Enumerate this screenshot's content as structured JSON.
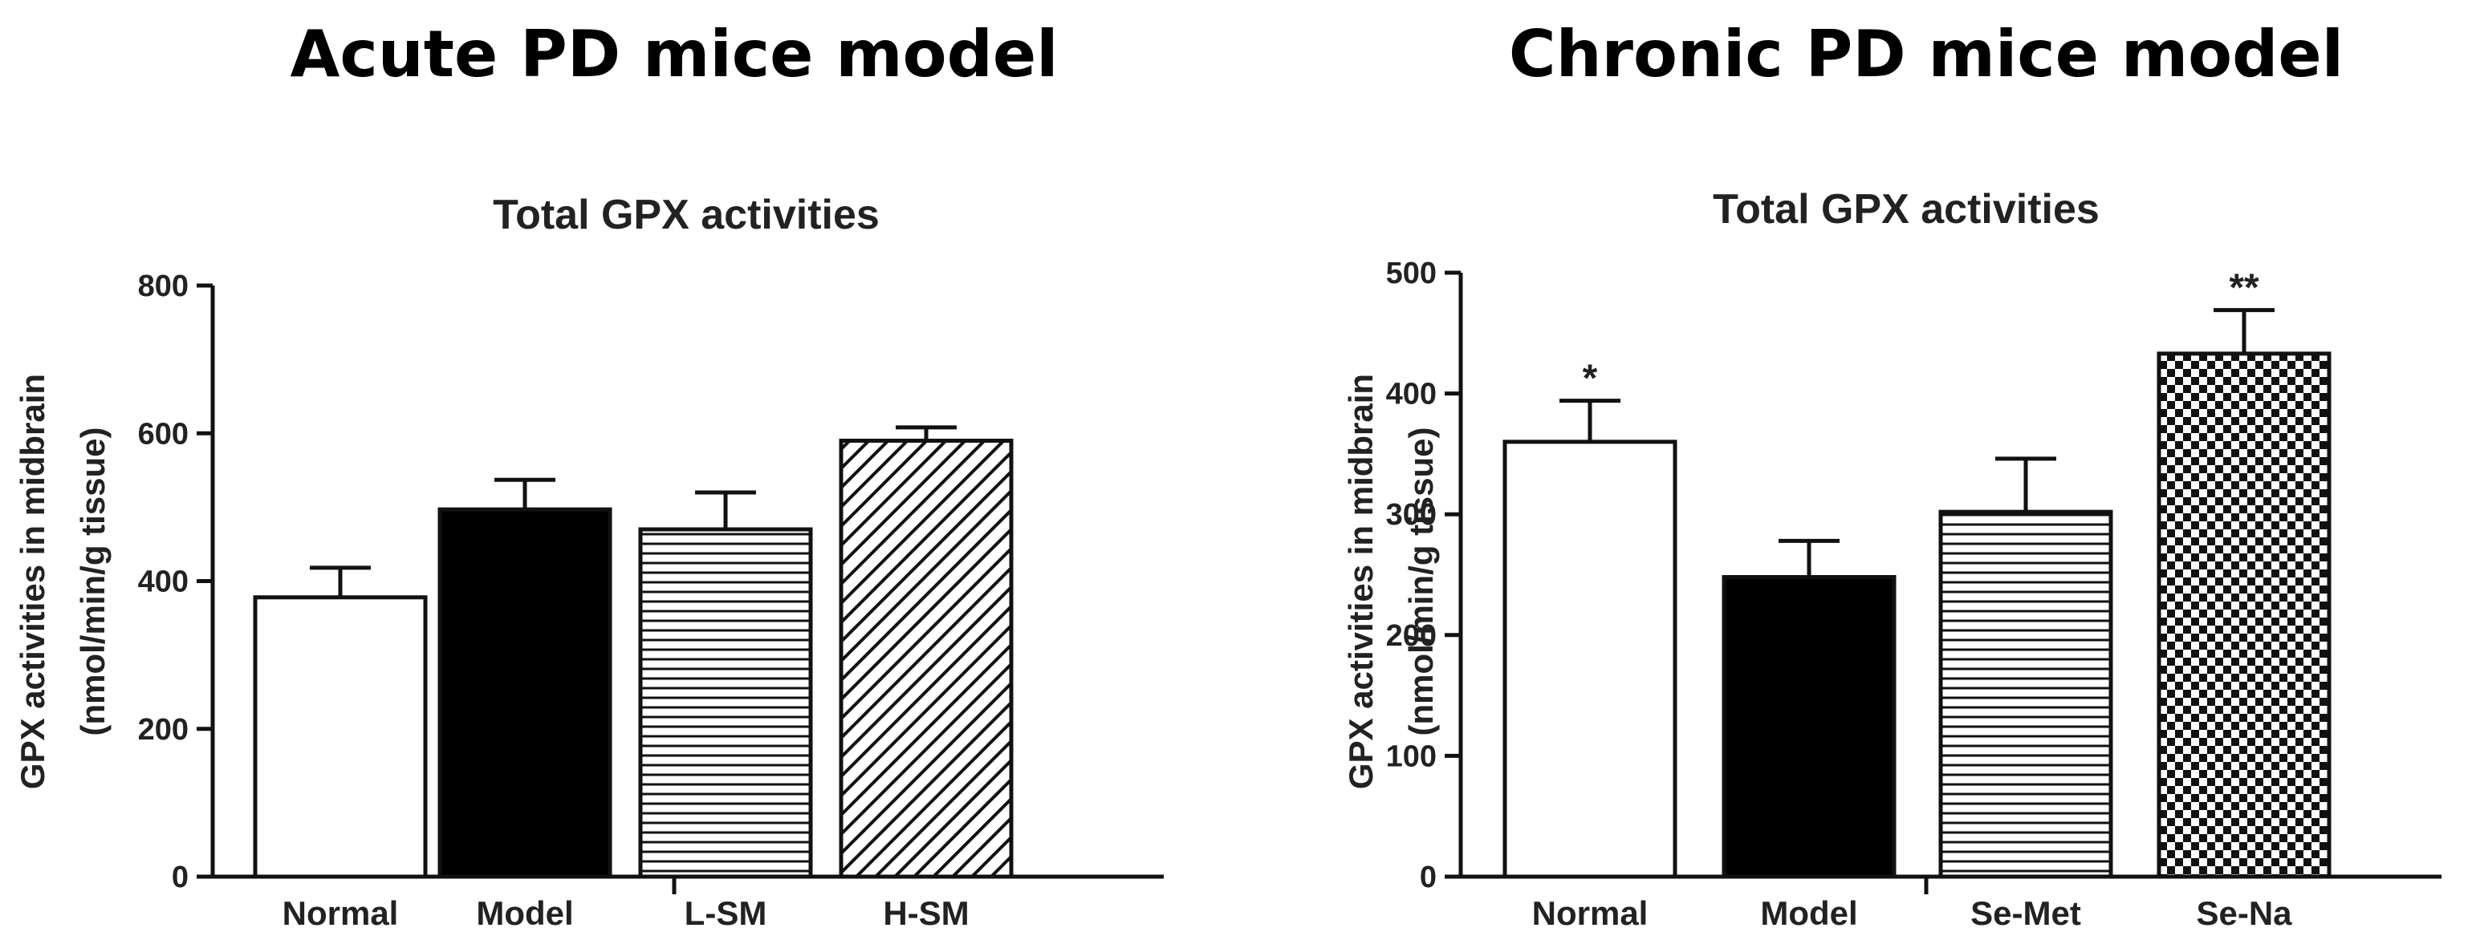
{
  "figure_headings": [
    "Acute PD mice model",
    "Chronic PD mice model"
  ],
  "chart_data": [
    {
      "type": "bar",
      "title": "Total GPX activities",
      "ylabel_lines": [
        "GPX activities in midbrain",
        "(nmol/min/g tissue)"
      ],
      "xlabel": "",
      "ylim": [
        0,
        800
      ],
      "yticks": [
        0,
        200,
        400,
        600,
        800
      ],
      "categories": [
        "Normal",
        "Model",
        "L-SM",
        "H-SM"
      ],
      "values": [
        378,
        497,
        470,
        590
      ],
      "errors": [
        40,
        40,
        50,
        18
      ],
      "fills": [
        "white",
        "black",
        "horizontal-stripes",
        "diagonal-stripes"
      ],
      "significance": [
        "",
        "",
        "",
        ""
      ]
    },
    {
      "type": "bar",
      "title": "Total GPX activities",
      "ylabel_lines": [
        "GPX activities in midbrain",
        "(nmol/min/g tissue)"
      ],
      "xlabel": "",
      "ylim": [
        0,
        500
      ],
      "yticks": [
        0,
        100,
        200,
        300,
        400,
        500
      ],
      "categories": [
        "Normal",
        "Model",
        "Se-Met",
        "Se-Na"
      ],
      "values": [
        360,
        248,
        302,
        433
      ],
      "errors": [
        34,
        30,
        44,
        36
      ],
      "fills": [
        "white",
        "black",
        "horizontal-stripes",
        "checker"
      ],
      "significance": [
        "*",
        "",
        "",
        "**"
      ]
    }
  ]
}
